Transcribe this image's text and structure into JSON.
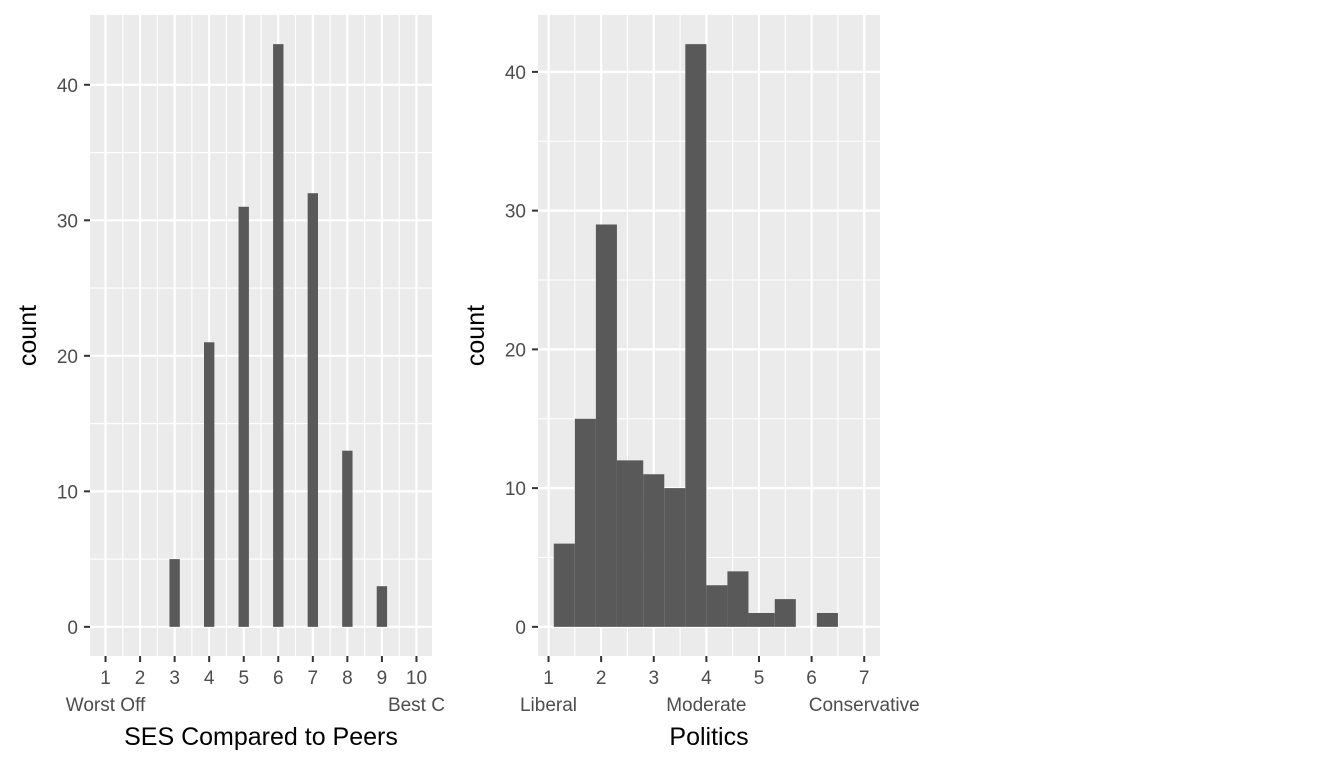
{
  "chart_data": [
    {
      "type": "bar",
      "xlabel": "SES Compared to Peers",
      "ylabel": "count",
      "x_ticks": [
        "1",
        "2",
        "3",
        "4",
        "5",
        "6",
        "7",
        "8",
        "9",
        "10"
      ],
      "x_tick_values": [
        1,
        2,
        3,
        4,
        5,
        6,
        7,
        8,
        9,
        10
      ],
      "x_annotations": [
        {
          "text": "Worst Off",
          "at": 1
        },
        {
          "text": "Best C",
          "at": 10
        }
      ],
      "y_ticks": [
        "0",
        "10",
        "20",
        "30",
        "40"
      ],
      "y_tick_values": [
        0,
        10,
        20,
        30,
        40
      ],
      "xlim": [
        0.55,
        10.45
      ],
      "ylim": [
        -2.15,
        45.15
      ],
      "grid": true,
      "bars": [
        {
          "x": 3,
          "value": 5
        },
        {
          "x": 4,
          "value": 21
        },
        {
          "x": 5,
          "value": 31
        },
        {
          "x": 6,
          "value": 43
        },
        {
          "x": 7,
          "value": 32
        },
        {
          "x": 8,
          "value": 13
        },
        {
          "x": 9,
          "value": 3
        }
      ],
      "bar_width": 0.3,
      "colors": {
        "bar": "#595959",
        "panel": "#ebebeb",
        "grid": "#ffffff"
      }
    },
    {
      "type": "bar",
      "xlabel": "Politics",
      "ylabel": "count",
      "x_ticks": [
        "1",
        "2",
        "3",
        "4",
        "5",
        "6",
        "7"
      ],
      "x_tick_values": [
        1,
        2,
        3,
        4,
        5,
        6,
        7
      ],
      "x_annotations": [
        {
          "text": "Liberal",
          "at": 1
        },
        {
          "text": "Moderate",
          "at": 4
        },
        {
          "text": "Conservative",
          "at": 7
        }
      ],
      "y_ticks": [
        "0",
        "10",
        "20",
        "30",
        "40"
      ],
      "y_tick_values": [
        0,
        10,
        20,
        30,
        40
      ],
      "xlim": [
        0.8,
        7.3
      ],
      "ylim": [
        -2.1,
        44.1
      ],
      "grid": true,
      "bins": [
        {
          "x0": 1.1,
          "x1": 1.5,
          "value": 6
        },
        {
          "x0": 1.5,
          "x1": 1.9,
          "value": 15
        },
        {
          "x0": 1.9,
          "x1": 2.3,
          "value": 29
        },
        {
          "x0": 2.3,
          "x1": 2.8,
          "value": 12
        },
        {
          "x0": 2.8,
          "x1": 3.2,
          "value": 11
        },
        {
          "x0": 3.2,
          "x1": 3.6,
          "value": 10
        },
        {
          "x0": 3.6,
          "x1": 4.0,
          "value": 42
        },
        {
          "x0": 4.0,
          "x1": 4.4,
          "value": 3
        },
        {
          "x0": 4.4,
          "x1": 4.8,
          "value": 4
        },
        {
          "x0": 4.8,
          "x1": 5.3,
          "value": 1
        },
        {
          "x0": 5.3,
          "x1": 5.7,
          "value": 2
        },
        {
          "x0": 5.7,
          "x1": 6.1,
          "value": 0
        },
        {
          "x0": 6.1,
          "x1": 6.5,
          "value": 1
        }
      ],
      "colors": {
        "bar": "#595959",
        "panel": "#ebebeb",
        "grid": "#ffffff"
      }
    }
  ]
}
